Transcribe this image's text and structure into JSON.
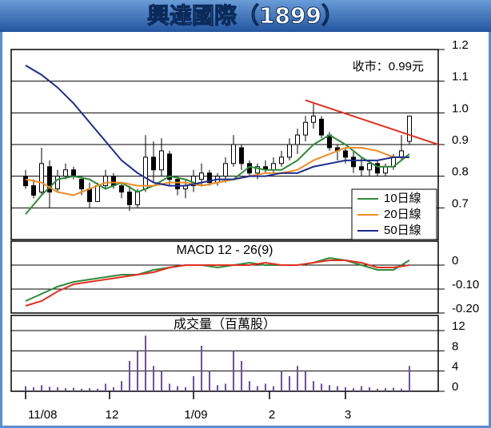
{
  "chart_data": [
    {
      "type": "candlestick",
      "title": "興達國際（1899）",
      "annotation": "收市：0.99元",
      "x": [
        0,
        2,
        4,
        6,
        8,
        10,
        12,
        14,
        16,
        18,
        20,
        22,
        24,
        26,
        28,
        30,
        32,
        34,
        36,
        38,
        40,
        42,
        44,
        46,
        48,
        50,
        52,
        54,
        56,
        58,
        60,
        62,
        64,
        66,
        68,
        70,
        72,
        74,
        76,
        78,
        80,
        82,
        84,
        86,
        88,
        90,
        92,
        94,
        96
      ],
      "open": [
        0.8,
        0.77,
        0.75,
        0.83,
        0.76,
        0.8,
        0.82,
        0.79,
        0.76,
        0.72,
        0.77,
        0.8,
        0.77,
        0.75,
        0.71,
        0.76,
        0.86,
        0.82,
        0.87,
        0.79,
        0.76,
        0.77,
        0.79,
        0.81,
        0.78,
        0.8,
        0.84,
        0.89,
        0.84,
        0.81,
        0.83,
        0.82,
        0.84,
        0.86,
        0.9,
        0.93,
        0.97,
        0.98,
        0.93,
        0.89,
        0.88,
        0.86,
        0.83,
        0.82,
        0.84,
        0.81,
        0.83,
        0.86,
        0.91
      ],
      "high": [
        0.82,
        0.79,
        0.89,
        0.85,
        0.82,
        0.84,
        0.83,
        0.8,
        0.78,
        0.78,
        0.82,
        0.81,
        0.78,
        0.77,
        0.76,
        0.93,
        0.91,
        0.92,
        0.88,
        0.8,
        0.79,
        0.82,
        0.84,
        0.82,
        0.81,
        0.86,
        0.93,
        0.9,
        0.85,
        0.84,
        0.85,
        0.86,
        0.88,
        0.92,
        0.95,
        0.99,
        1.03,
        0.99,
        0.94,
        0.9,
        0.89,
        0.88,
        0.86,
        0.85,
        0.85,
        0.84,
        0.87,
        0.93,
        0.99
      ],
      "low": [
        0.76,
        0.73,
        0.74,
        0.7,
        0.75,
        0.79,
        0.79,
        0.74,
        0.7,
        0.72,
        0.76,
        0.76,
        0.73,
        0.69,
        0.7,
        0.75,
        0.78,
        0.8,
        0.77,
        0.74,
        0.73,
        0.75,
        0.77,
        0.77,
        0.77,
        0.78,
        0.83,
        0.82,
        0.8,
        0.79,
        0.81,
        0.81,
        0.83,
        0.85,
        0.87,
        0.91,
        0.95,
        0.92,
        0.88,
        0.85,
        0.84,
        0.81,
        0.8,
        0.8,
        0.8,
        0.8,
        0.82,
        0.85,
        0.9
      ],
      "close": [
        0.77,
        0.74,
        0.84,
        0.75,
        0.8,
        0.82,
        0.8,
        0.76,
        0.72,
        0.77,
        0.8,
        0.77,
        0.75,
        0.71,
        0.75,
        0.86,
        0.82,
        0.88,
        0.79,
        0.76,
        0.77,
        0.8,
        0.81,
        0.78,
        0.8,
        0.84,
        0.9,
        0.84,
        0.81,
        0.83,
        0.82,
        0.84,
        0.86,
        0.9,
        0.93,
        0.97,
        0.99,
        0.93,
        0.89,
        0.88,
        0.86,
        0.83,
        0.82,
        0.84,
        0.81,
        0.83,
        0.86,
        0.88,
        0.99
      ],
      "up_color": "#ffffff",
      "down_color": "#000000",
      "series": [
        {
          "name": "10日線",
          "color": "#2e8b3a",
          "x": [
            0,
            4,
            8,
            12,
            16,
            20,
            24,
            28,
            32,
            36,
            40,
            44,
            48,
            52,
            56,
            60,
            64,
            68,
            72,
            76,
            80,
            84,
            88,
            92,
            96
          ],
          "values": [
            0.68,
            0.74,
            0.79,
            0.8,
            0.79,
            0.76,
            0.78,
            0.75,
            0.77,
            0.8,
            0.79,
            0.77,
            0.78,
            0.79,
            0.83,
            0.82,
            0.82,
            0.85,
            0.9,
            0.93,
            0.9,
            0.86,
            0.83,
            0.83,
            0.87
          ]
        },
        {
          "name": "20日線",
          "color": "#f08c28",
          "x": [
            0,
            4,
            8,
            12,
            16,
            20,
            24,
            28,
            32,
            36,
            40,
            44,
            48,
            52,
            56,
            60,
            64,
            68,
            72,
            76,
            80,
            84,
            88,
            92,
            96
          ],
          "values": [
            0.79,
            0.78,
            0.75,
            0.74,
            0.76,
            0.78,
            0.78,
            0.77,
            0.77,
            0.78,
            0.78,
            0.77,
            0.78,
            0.79,
            0.8,
            0.81,
            0.81,
            0.82,
            0.85,
            0.87,
            0.89,
            0.89,
            0.88,
            0.86,
            0.86
          ]
        },
        {
          "name": "50日線",
          "color": "#1c2c8c",
          "x": [
            0,
            4,
            8,
            12,
            16,
            20,
            24,
            28,
            32,
            36,
            40,
            44,
            48,
            52,
            56,
            60,
            64,
            68,
            72,
            76,
            80,
            84,
            88,
            92,
            96
          ],
          "values": [
            1.15,
            1.12,
            1.08,
            1.03,
            0.97,
            0.91,
            0.85,
            0.81,
            0.78,
            0.77,
            0.77,
            0.78,
            0.79,
            0.79,
            0.8,
            0.8,
            0.81,
            0.81,
            0.83,
            0.84,
            0.85,
            0.85,
            0.85,
            0.86,
            0.86
          ]
        }
      ],
      "trendline": {
        "x": [
          70,
          103.2
        ],
        "values": [
          1.04,
          0.9
        ],
        "color": "#e03020"
      },
      "ylim": [
        0.6,
        1.2
      ],
      "yticks": [
        1.2,
        1.1,
        {
          "value": 1,
          "label": "1.0"
        },
        0.9,
        0.8,
        0.7
      ],
      "grid": true,
      "legend": "lower right"
    },
    {
      "type": "line",
      "title": "MACD 12 - 26(9)",
      "series": [
        {
          "color": "#2e8b3a",
          "x": [
            0,
            4,
            8,
            12,
            16,
            20,
            24,
            28,
            32,
            36,
            40,
            44,
            48,
            52,
            56,
            60,
            64,
            68,
            72,
            76,
            80,
            84,
            88,
            92,
            96
          ],
          "values": [
            -0.15,
            -0.12,
            -0.09,
            -0.07,
            -0.06,
            -0.05,
            -0.04,
            -0.04,
            -0.02,
            -0.01,
            0,
            0,
            -0.01,
            0,
            0.01,
            0,
            0,
            0,
            0.01,
            0.03,
            0.02,
            0,
            -0.02,
            -0.02,
            0.02
          ]
        },
        {
          "color": "#e03020",
          "x": [
            0,
            4,
            8,
            12,
            16,
            20,
            24,
            28,
            32,
            36,
            40,
            44,
            48,
            52,
            56,
            60,
            64,
            68,
            72,
            76,
            80,
            84,
            88,
            92,
            96
          ],
          "values": [
            -0.17,
            -0.15,
            -0.11,
            -0.08,
            -0.07,
            -0.06,
            -0.05,
            -0.04,
            -0.03,
            -0.01,
            0,
            0,
            0,
            0,
            0,
            0.01,
            0,
            0,
            0.01,
            0.02,
            0.02,
            0.01,
            -0.01,
            -0.01,
            0
          ]
        }
      ],
      "ylim": [
        -0.2,
        0.1
      ],
      "yticks": [
        0,
        {
          "value": -0.1,
          "label": "-0.10"
        },
        {
          "value": -0.2,
          "label": "-0.20"
        }
      ],
      "grid": true
    },
    {
      "type": "bar",
      "title": "成交量（百萬股）",
      "color": "#6a4fa8",
      "x": [
        0,
        2,
        4,
        6,
        8,
        10,
        12,
        14,
        16,
        18,
        20,
        22,
        24,
        26,
        28,
        30,
        32,
        34,
        36,
        38,
        40,
        42,
        44,
        46,
        48,
        50,
        52,
        54,
        56,
        58,
        60,
        62,
        64,
        66,
        68,
        70,
        72,
        74,
        76,
        78,
        80,
        82,
        84,
        86,
        88,
        90,
        92,
        94,
        96
      ],
      "values": [
        1,
        0.8,
        1.2,
        0.9,
        0.8,
        0.6,
        0.7,
        0.5,
        0.6,
        0.5,
        1.5,
        0.8,
        2,
        6,
        8,
        11,
        5,
        4,
        1.5,
        1,
        0.8,
        3,
        9,
        4,
        1.2,
        1.5,
        8,
        6,
        2,
        1,
        1.5,
        1,
        4,
        3,
        5,
        4,
        2,
        1.5,
        1.2,
        1,
        0.8,
        0.6,
        1,
        0.8,
        0.5,
        0.6,
        0.7,
        0.5,
        5
      ],
      "ylim": [
        0,
        15
      ],
      "yticks": [
        12,
        8,
        4,
        0
      ],
      "grid": true,
      "xlim": [
        -3.6,
        103.2
      ],
      "xticks": [
        {
          "value": 0,
          "label": "11/08"
        },
        {
          "value": 21,
          "label": "12"
        },
        {
          "value": 42,
          "label": "1/09"
        },
        {
          "value": 61,
          "label": "2"
        },
        {
          "value": 80,
          "label": "3"
        }
      ]
    }
  ]
}
